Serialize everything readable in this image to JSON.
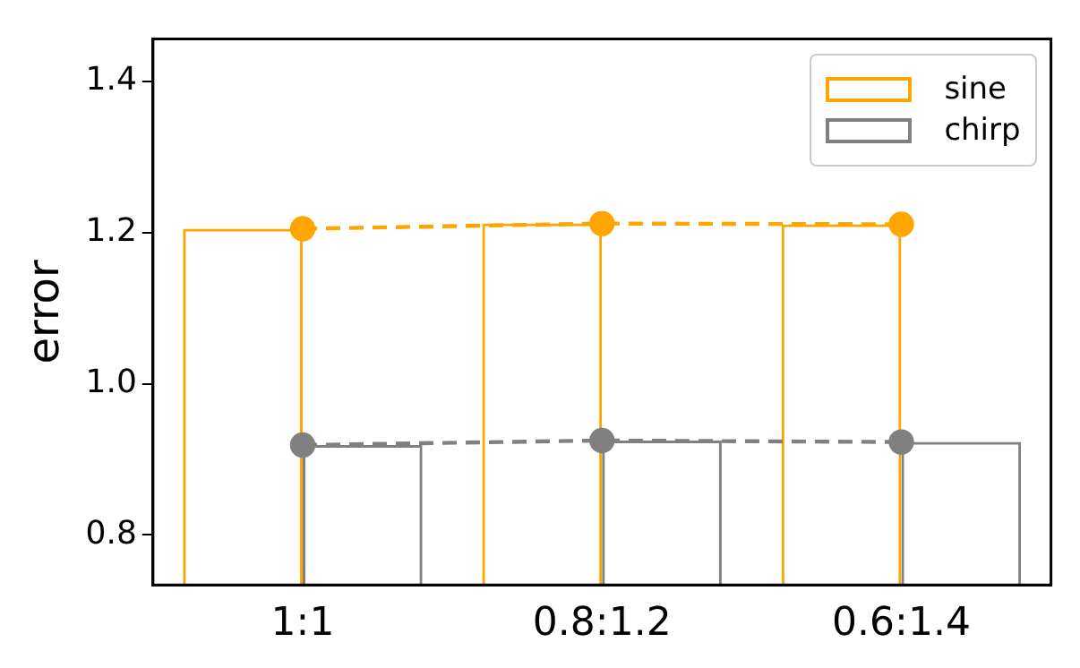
{
  "chart_data": {
    "type": "bar",
    "categories": [
      "1:1",
      "0.8:1.2",
      "0.6:1.4"
    ],
    "ylabel": "error",
    "ylim": [
      0.734,
      1.456
    ],
    "yticks": [
      0.8,
      {
        "value": 1,
        "label": "1.0"
      },
      1.2,
      1.4
    ],
    "legend": "top right",
    "grid": false,
    "series": [
      {
        "name": "sine",
        "color": "#ffa500",
        "values": [
          1.205,
          1.212,
          1.211
        ]
      },
      {
        "name": "chirp",
        "color": "#808080",
        "values": [
          0.919,
          0.925,
          0.923
        ]
      },
      {
        "type": "line",
        "color": "#ffa500",
        "marker": "circle",
        "line_style": "dashed",
        "values": [
          1.205,
          1.212,
          1.211
        ]
      },
      {
        "type": "line",
        "color": "#808080",
        "marker": "circle",
        "line_style": "dashed",
        "values": [
          0.919,
          0.925,
          0.923
        ]
      }
    ]
  }
}
